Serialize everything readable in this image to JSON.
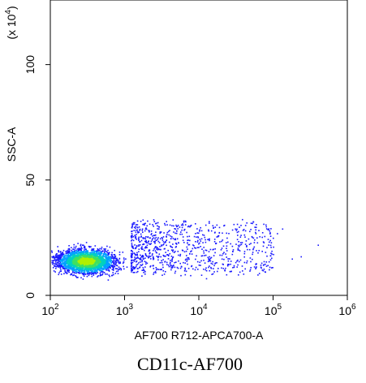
{
  "chart_data": {
    "type": "scatter",
    "subtype": "flow-cytometry density dot plot",
    "title": "CD11c-AF700",
    "xlabel": "AF700 R712-APCA700-A",
    "ylabel": "SSC-A",
    "y_multiplier_label": "(x 10",
    "y_multiplier_exp": "4",
    "y_multiplier_close": ")",
    "x_scale": "log",
    "xlim": [
      100,
      1000000
    ],
    "x_ticks": [
      {
        "value": 100,
        "base": "10",
        "exp": "2"
      },
      {
        "value": 1000,
        "base": "10",
        "exp": "3"
      },
      {
        "value": 10000,
        "base": "10",
        "exp": "4"
      },
      {
        "value": 100000,
        "base": "10",
        "exp": "5"
      },
      {
        "value": 1000000,
        "base": "10",
        "exp": "6"
      }
    ],
    "y_scale": "linear",
    "ylim": [
      0,
      128
    ],
    "y_ticks": [
      {
        "value": 0,
        "label": "0"
      },
      {
        "value": 50,
        "label": "50"
      },
      {
        "value": 100,
        "label": "100"
      }
    ],
    "density_colors": [
      "#1a1aff",
      "#00a0ff",
      "#00d0c0",
      "#40e060",
      "#b0f000"
    ],
    "population": {
      "x_center": 300,
      "y_center": 15,
      "x_main_range": [
        100,
        1500
      ],
      "y_main_range": [
        7,
        25
      ],
      "x_tail_max": 100000,
      "y_tail_range": [
        10,
        32
      ]
    },
    "grid": false,
    "legend": "none"
  }
}
